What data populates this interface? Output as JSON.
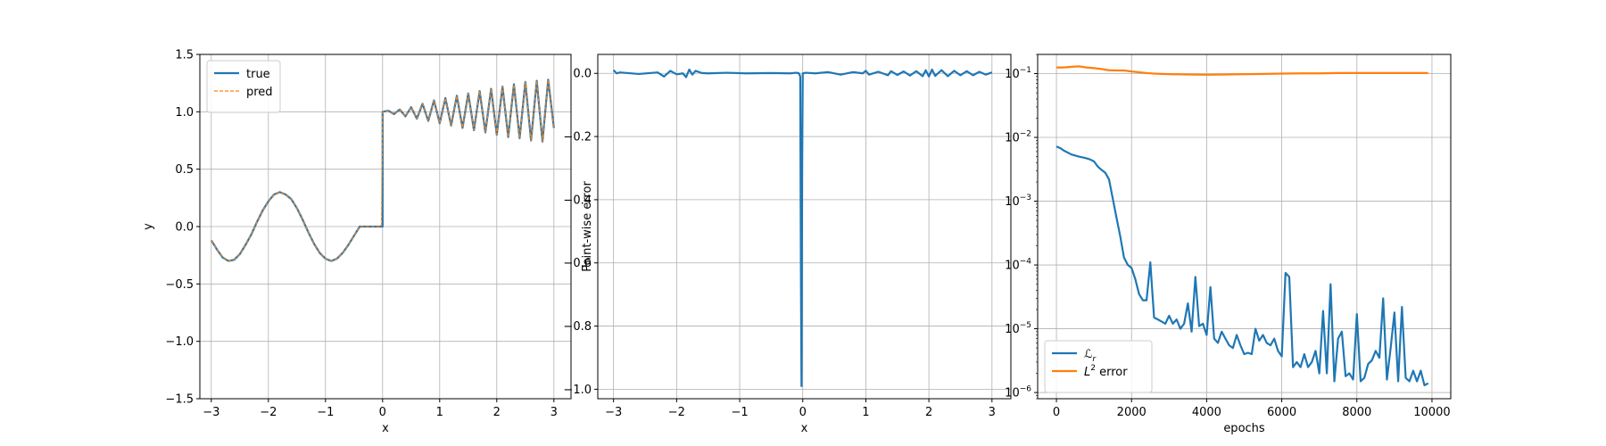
{
  "colors": {
    "blue": "#1f77b4",
    "orange": "#ff7f0e",
    "grid": "#b0b0b0",
    "axes": "#000000"
  },
  "chart_data": [
    {
      "type": "line",
      "title": "",
      "xlabel": "x",
      "ylabel": "y",
      "xlim": [
        -3.2,
        3.3
      ],
      "ylim": [
        -1.5,
        1.5
      ],
      "xticks": [
        -3,
        -2,
        -1,
        0,
        1,
        2,
        3
      ],
      "xtick_labels": [
        "−3",
        "−2",
        "−1",
        "0",
        "1",
        "2",
        "3"
      ],
      "yticks": [
        -1.5,
        -1.0,
        -0.5,
        0.0,
        0.5,
        1.0,
        1.5
      ],
      "ytick_labels": [
        "−1.5",
        "−1.0",
        "−0.5",
        "0.0",
        "0.5",
        "1.0",
        "1.5"
      ],
      "grid": true,
      "legend": {
        "position": "upper-left",
        "entries": [
          "true",
          "pred"
        ]
      },
      "series": [
        {
          "name": "true",
          "style": "solid",
          "x": [
            -3.0,
            -2.9,
            -2.8,
            -2.7,
            -2.6,
            -2.5,
            -2.4,
            -2.3,
            -2.2,
            -2.1,
            -2.0,
            -1.9,
            -1.8,
            -1.7,
            -1.6,
            -1.5,
            -1.4,
            -1.3,
            -1.2,
            -1.1,
            -1.0,
            -0.9,
            -0.8,
            -0.7,
            -0.6,
            -0.5,
            -0.4,
            -0.3,
            -0.2,
            -0.1,
            0.0,
            0.0,
            0.1,
            0.2,
            0.3,
            0.4,
            0.5,
            0.6,
            0.7,
            0.8,
            0.9,
            1.0,
            1.1,
            1.2,
            1.3,
            1.4,
            1.5,
            1.6,
            1.7,
            1.8,
            1.9,
            2.0,
            2.1,
            2.2,
            2.3,
            2.4,
            2.5,
            2.6,
            2.7,
            2.8,
            2.9,
            3.0
          ],
          "y": [
            -0.12,
            -0.2,
            -0.27,
            -0.3,
            -0.29,
            -0.24,
            -0.16,
            -0.07,
            0.04,
            0.14,
            0.22,
            0.28,
            0.3,
            0.28,
            0.24,
            0.16,
            0.06,
            -0.05,
            -0.15,
            -0.23,
            -0.28,
            -0.3,
            -0.28,
            -0.23,
            -0.16,
            -0.08,
            0.0,
            0.0,
            0.0,
            0.0,
            0.0,
            1.0,
            1.01,
            0.98,
            1.02,
            0.96,
            1.04,
            0.94,
            1.07,
            0.92,
            1.1,
            0.9,
            1.12,
            0.88,
            1.14,
            0.86,
            1.16,
            0.84,
            1.18,
            0.82,
            1.2,
            0.8,
            1.22,
            0.78,
            1.24,
            0.77,
            1.26,
            0.75,
            1.27,
            0.74,
            1.28,
            0.86
          ]
        },
        {
          "name": "pred",
          "style": "dashed",
          "x": [
            -3.0,
            -2.9,
            -2.8,
            -2.7,
            -2.6,
            -2.5,
            -2.4,
            -2.3,
            -2.2,
            -2.1,
            -2.0,
            -1.9,
            -1.8,
            -1.7,
            -1.6,
            -1.5,
            -1.4,
            -1.3,
            -1.2,
            -1.1,
            -1.0,
            -0.9,
            -0.8,
            -0.7,
            -0.6,
            -0.5,
            -0.4,
            -0.3,
            -0.2,
            -0.1,
            -0.02,
            0.0,
            0.1,
            0.2,
            0.3,
            0.4,
            0.5,
            0.6,
            0.7,
            0.8,
            0.9,
            1.0,
            1.1,
            1.2,
            1.3,
            1.4,
            1.5,
            1.6,
            1.7,
            1.8,
            1.9,
            2.0,
            2.1,
            2.2,
            2.3,
            2.4,
            2.5,
            2.6,
            2.7,
            2.8,
            2.9,
            3.0
          ],
          "y": [
            -0.12,
            -0.2,
            -0.27,
            -0.3,
            -0.29,
            -0.24,
            -0.16,
            -0.07,
            0.04,
            0.14,
            0.22,
            0.28,
            0.3,
            0.28,
            0.24,
            0.16,
            0.06,
            -0.05,
            -0.15,
            -0.23,
            -0.28,
            -0.3,
            -0.28,
            -0.23,
            -0.16,
            -0.08,
            0.0,
            0.0,
            0.0,
            0.0,
            0.0,
            1.0,
            1.01,
            0.98,
            1.02,
            0.96,
            1.04,
            0.94,
            1.07,
            0.92,
            1.1,
            0.9,
            1.12,
            0.88,
            1.14,
            0.86,
            1.16,
            0.84,
            1.18,
            0.82,
            1.2,
            0.8,
            1.22,
            0.78,
            1.24,
            0.77,
            1.26,
            0.75,
            1.27,
            0.74,
            1.28,
            0.86
          ]
        }
      ]
    },
    {
      "type": "line",
      "title": "",
      "xlabel": "x",
      "ylabel": "Point-wise error",
      "xlim": [
        -3.25,
        3.3
      ],
      "ylim": [
        -1.03,
        0.06
      ],
      "xticks": [
        -3,
        -2,
        -1,
        0,
        1,
        2,
        3
      ],
      "xtick_labels": [
        "−3",
        "−2",
        "−1",
        "0",
        "1",
        "2",
        "3"
      ],
      "yticks": [
        -1.0,
        -0.8,
        -0.6,
        -0.4,
        -0.2,
        0.0
      ],
      "ytick_labels": [
        "−1.0",
        "−0.8",
        "−0.6",
        "−0.4",
        "−0.2",
        "0.0"
      ],
      "grid": true,
      "series": [
        {
          "name": "",
          "x": [
            -3.0,
            -2.95,
            -2.9,
            -2.6,
            -2.3,
            -2.2,
            -2.1,
            -2.0,
            -1.9,
            -1.85,
            -1.8,
            -1.75,
            -1.7,
            -1.6,
            -1.5,
            -1.2,
            -0.9,
            -0.5,
            -0.2,
            -0.1,
            -0.06,
            -0.04,
            -0.03,
            -0.02,
            -0.01,
            0.0,
            0.05,
            0.2,
            0.4,
            0.6,
            0.8,
            0.95,
            1.0,
            1.05,
            1.2,
            1.35,
            1.4,
            1.5,
            1.6,
            1.7,
            1.8,
            1.9,
            1.95,
            2.0,
            2.05,
            2.1,
            2.2,
            2.3,
            2.4,
            2.5,
            2.6,
            2.7,
            2.8,
            2.9,
            3.0
          ],
          "y": [
            0.01,
            0.0,
            0.003,
            -0.002,
            0.003,
            -0.01,
            0.008,
            -0.003,
            0.0,
            -0.012,
            0.012,
            -0.004,
            0.008,
            0.001,
            0.0,
            0.002,
            0.0,
            0.001,
            0.0,
            0.002,
            0.0,
            -0.01,
            -0.6,
            -0.99,
            -0.3,
            0.0,
            0.002,
            0.0,
            0.004,
            -0.004,
            0.004,
            0.0,
            0.008,
            -0.004,
            0.005,
            -0.006,
            0.007,
            -0.005,
            0.006,
            -0.007,
            0.007,
            -0.009,
            0.01,
            -0.01,
            0.012,
            -0.008,
            0.01,
            -0.009,
            0.008,
            -0.006,
            0.007,
            -0.006,
            0.005,
            -0.004,
            0.003
          ]
        }
      ]
    },
    {
      "type": "line",
      "title": "",
      "xlabel": "epochs",
      "ylabel": "",
      "xscale": "linear",
      "yscale": "log",
      "xlim": [
        -500,
        10500
      ],
      "ylim": [
        8e-07,
        0.2
      ],
      "xticks": [
        0,
        2000,
        4000,
        6000,
        8000,
        10000
      ],
      "xtick_labels": [
        "0",
        "2000",
        "4000",
        "6000",
        "8000",
        "10000"
      ],
      "yticks": [
        1e-06,
        1e-05,
        0.0001,
        0.001,
        0.01,
        0.1
      ],
      "ytick_base": "10",
      "ytick_exponents": [
        "−6",
        "−5",
        "−4",
        "−3",
        "−2",
        "−1"
      ],
      "grid": true,
      "legend": {
        "position": "lower-left",
        "entries": [
          {
            "main": "ℒ",
            "sub": "r",
            "sup": "",
            "rest": ""
          },
          {
            "main": "L",
            "sub": "",
            "sup": "2",
            "rest": " error"
          }
        ]
      },
      "series": [
        {
          "name": "ℒr",
          "x": [
            0,
            100,
            200,
            400,
            600,
            800,
            900,
            1000,
            1100,
            1200,
            1300,
            1400,
            1500,
            1600,
            1700,
            1800,
            1900,
            2000,
            2100,
            2200,
            2300,
            2400,
            2500,
            2600,
            2700,
            2800,
            2900,
            3000,
            3100,
            3200,
            3300,
            3400,
            3500,
            3600,
            3700,
            3800,
            3900,
            4000,
            4100,
            4200,
            4300,
            4400,
            4500,
            4600,
            4700,
            4800,
            4900,
            5000,
            5100,
            5200,
            5300,
            5400,
            5500,
            5600,
            5700,
            5800,
            5900,
            6000,
            6100,
            6200,
            6300,
            6400,
            6500,
            6600,
            6700,
            6800,
            6900,
            7000,
            7100,
            7200,
            7300,
            7400,
            7500,
            7600,
            7700,
            7800,
            7900,
            8000,
            8100,
            8200,
            8300,
            8400,
            8500,
            8600,
            8700,
            8800,
            8900,
            9000,
            9100,
            9200,
            9300,
            9400,
            9500,
            9600,
            9700,
            9800,
            9900
          ],
          "y": [
            0.0072,
            0.0068,
            0.0062,
            0.0054,
            0.005,
            0.0047,
            0.0045,
            0.0042,
            0.0035,
            0.0031,
            0.0028,
            0.0022,
            0.0011,
            0.00055,
            0.00028,
            0.00013,
            0.0001,
            9e-05,
            6e-05,
            3.5e-05,
            2.8e-05,
            2.8e-05,
            0.00011,
            1.5e-05,
            1.4e-05,
            1.3e-05,
            1.2e-05,
            1.6e-05,
            1.2e-05,
            1.4e-05,
            1e-05,
            1.2e-05,
            2.5e-05,
            9e-06,
            6.5e-05,
            1.1e-05,
            1.2e-05,
            8e-06,
            4.5e-05,
            7e-06,
            6e-06,
            9e-06,
            7e-06,
            5.5e-06,
            5e-06,
            8e-06,
            5.5e-06,
            4e-06,
            4.2e-06,
            4e-06,
            1e-05,
            6.5e-06,
            8e-06,
            6e-06,
            5.5e-06,
            7e-06,
            4.5e-06,
            3.7e-06,
            7.5e-05,
            6.5e-05,
            2.5e-06,
            3e-06,
            2.5e-06,
            4e-06,
            2.5e-06,
            3e-06,
            4.5e-06,
            2e-06,
            1.9e-05,
            2e-06,
            5e-05,
            1.5e-06,
            7e-06,
            9e-06,
            1.8e-06,
            2e-06,
            1.6e-06,
            1.7e-05,
            1.5e-06,
            1.7e-06,
            2.8e-06,
            3.2e-06,
            4.5e-06,
            3.5e-06,
            3e-05,
            1.6e-06,
            5e-06,
            1.8e-05,
            1.5e-06,
            2.2e-05,
            1.7e-06,
            1.5e-06,
            2.2e-06,
            1.5e-06,
            2.2e-06,
            1.3e-06,
            1.4e-06
          ]
        },
        {
          "name": "L2 error",
          "x": [
            0,
            200,
            400,
            600,
            800,
            1000,
            1200,
            1400,
            1600,
            1800,
            2000,
            2200,
            2400,
            2600,
            2800,
            3000,
            3500,
            4000,
            4500,
            5000,
            5500,
            6000,
            6500,
            7000,
            7500,
            8000,
            8500,
            9000,
            9500,
            9900
          ],
          "y": [
            0.125,
            0.125,
            0.128,
            0.13,
            0.125,
            0.122,
            0.118,
            0.113,
            0.112,
            0.112,
            0.108,
            0.105,
            0.102,
            0.1,
            0.099,
            0.098,
            0.097,
            0.096,
            0.097,
            0.098,
            0.099,
            0.1,
            0.101,
            0.101,
            0.102,
            0.102,
            0.102,
            0.102,
            0.102,
            0.102
          ]
        }
      ]
    }
  ]
}
